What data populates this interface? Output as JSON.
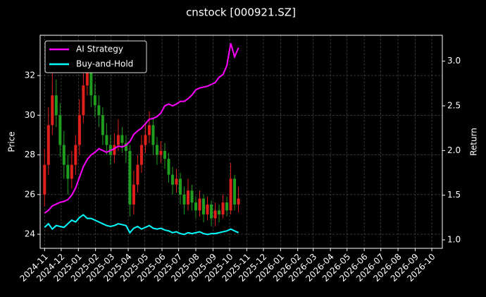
{
  "chart_data": {
    "type": "candlestick",
    "title": "cnstock [000921.SZ]",
    "ylabel": "Price",
    "y2label": "Return",
    "x": [
      "2024-11-01",
      "2024-11-08",
      "2024-11-15",
      "2024-11-22",
      "2024-11-29",
      "2024-12-06",
      "2024-12-13",
      "2024-12-20",
      "2024-12-27",
      "2025-01-03",
      "2025-01-10",
      "2025-01-17",
      "2025-01-24",
      "2025-01-31",
      "2025-02-07",
      "2025-02-14",
      "2025-02-21",
      "2025-02-28",
      "2025-03-07",
      "2025-03-14",
      "2025-03-21",
      "2025-03-28",
      "2025-04-04",
      "2025-04-11",
      "2025-04-18",
      "2025-04-25",
      "2025-05-02",
      "2025-05-09",
      "2025-05-16",
      "2025-05-23",
      "2025-05-30",
      "2025-06-06",
      "2025-06-13",
      "2025-06-20",
      "2025-06-27",
      "2025-07-04",
      "2025-07-11",
      "2025-07-18",
      "2025-07-25",
      "2025-08-01",
      "2025-08-08",
      "2025-08-15",
      "2025-08-22",
      "2025-08-29",
      "2025-09-05",
      "2025-09-12",
      "2025-09-19",
      "2025-09-26",
      "2025-10-03",
      "2025-10-10",
      "2025-10-17"
    ],
    "open": [
      26.0,
      27.5,
      29.5,
      31.0,
      30.0,
      28.5,
      27.5,
      26.8,
      27.5,
      28.5,
      30.0,
      31.5,
      32.5,
      31.0,
      30.5,
      30.0,
      29.0,
      28.5,
      28.0,
      28.5,
      29.0,
      28.6,
      28.2,
      25.5,
      26.5,
      27.5,
      28.5,
      29.0,
      29.5,
      28.5,
      28.0,
      28.2,
      27.8,
      27.0,
      26.5,
      26.8,
      26.0,
      25.5,
      26.2,
      25.6,
      25.2,
      25.8,
      25.0,
      25.5,
      24.8,
      25.2,
      25.0,
      25.6,
      25.2,
      26.8,
      25.5
    ],
    "high": [
      28.3,
      30.4,
      32.2,
      31.8,
      30.6,
      29.2,
      28.0,
      28.2,
      29.0,
      30.8,
      32.3,
      33.2,
      32.9,
      31.6,
      31.0,
      30.4,
      29.6,
      29.0,
      29.1,
      29.8,
      29.4,
      29.0,
      28.5,
      27.2,
      28.0,
      29.0,
      29.6,
      30.2,
      29.9,
      28.9,
      28.7,
      28.6,
      28.1,
      27.4,
      27.3,
      27.1,
      26.4,
      26.8,
      26.5,
      25.9,
      26.2,
      26.0,
      25.9,
      25.7,
      25.6,
      25.5,
      26.0,
      25.9,
      27.6,
      27.0,
      26.4
    ],
    "low": [
      25.4,
      27.0,
      29.0,
      29.4,
      27.9,
      26.8,
      26.0,
      26.3,
      27.0,
      28.0,
      29.6,
      31.0,
      30.4,
      29.9,
      29.4,
      28.5,
      28.0,
      27.5,
      27.6,
      28.2,
      28.1,
      27.6,
      24.9,
      25.0,
      26.1,
      27.1,
      28.1,
      28.6,
      28.0,
      27.5,
      27.6,
      27.3,
      26.6,
      26.0,
      26.1,
      25.5,
      25.0,
      25.2,
      25.2,
      24.8,
      24.9,
      24.6,
      24.7,
      24.4,
      24.4,
      24.6,
      24.8,
      24.9,
      25.0,
      25.2,
      25.1
    ],
    "close": [
      27.5,
      29.5,
      31.0,
      30.0,
      28.5,
      27.5,
      26.8,
      27.5,
      28.5,
      30.0,
      31.5,
      32.5,
      31.0,
      30.5,
      30.0,
      29.0,
      28.5,
      28.0,
      28.5,
      29.0,
      28.6,
      28.2,
      25.5,
      26.5,
      27.5,
      28.5,
      29.0,
      29.5,
      28.5,
      28.0,
      28.2,
      27.8,
      27.0,
      26.5,
      26.8,
      26.0,
      25.5,
      26.2,
      25.6,
      25.2,
      25.8,
      25.0,
      25.5,
      24.8,
      25.2,
      25.0,
      25.6,
      25.2,
      26.8,
      25.5,
      25.8
    ],
    "up_color": "#e0201b",
    "down_color": "#1f9e1f",
    "series": [
      {
        "name": "AI Strategy",
        "color": "#ff00ff",
        "axis": "y2",
        "values": [
          1.3,
          1.33,
          1.38,
          1.4,
          1.42,
          1.43,
          1.45,
          1.5,
          1.58,
          1.7,
          1.82,
          1.9,
          1.95,
          1.98,
          2.02,
          2.0,
          1.98,
          2.0,
          2.02,
          2.05,
          2.04,
          2.06,
          2.1,
          2.18,
          2.22,
          2.25,
          2.3,
          2.35,
          2.36,
          2.38,
          2.42,
          2.5,
          2.52,
          2.5,
          2.52,
          2.55,
          2.55,
          2.58,
          2.62,
          2.68,
          2.7,
          2.71,
          2.72,
          2.74,
          2.76,
          2.82,
          2.85,
          2.95,
          3.2,
          3.05,
          3.15
        ]
      },
      {
        "name": "Buy-and-Hold",
        "color": "#00ffff",
        "axis": "y2",
        "values": [
          1.14,
          1.18,
          1.12,
          1.16,
          1.15,
          1.14,
          1.18,
          1.22,
          1.2,
          1.25,
          1.28,
          1.24,
          1.24,
          1.22,
          1.2,
          1.18,
          1.16,
          1.15,
          1.16,
          1.18,
          1.17,
          1.16,
          1.08,
          1.13,
          1.15,
          1.12,
          1.14,
          1.16,
          1.13,
          1.12,
          1.13,
          1.11,
          1.1,
          1.08,
          1.09,
          1.07,
          1.06,
          1.08,
          1.07,
          1.08,
          1.09,
          1.07,
          1.06,
          1.07,
          1.07,
          1.08,
          1.09,
          1.1,
          1.12,
          1.1,
          1.08
        ]
      }
    ],
    "xlim": [
      "2024-10-24",
      "2026-10-20"
    ],
    "xticks": [
      "2024-11",
      "2024-12",
      "2025-01",
      "2025-02",
      "2025-03",
      "2025-04",
      "2025-05",
      "2025-06",
      "2025-07",
      "2025-08",
      "2025-09",
      "2025-10",
      "2025-11",
      "2025-12",
      "2026-01",
      "2026-02",
      "2026-03",
      "2026-04",
      "2026-05",
      "2026-06",
      "2026-07",
      "2026-08",
      "2026-09",
      "2026-10"
    ],
    "ylim": [
      23.29,
      34.03
    ],
    "yticks": [
      24,
      26,
      28,
      30,
      32
    ],
    "y2lim": [
      0.905,
      3.29
    ],
    "y2ticks": [
      {
        "value": 1,
        "label": "1.0"
      },
      1.5,
      {
        "value": 2,
        "label": "2.0"
      },
      2.5,
      {
        "value": 3,
        "label": "3.0"
      }
    ],
    "grid": true,
    "legend": "upper left"
  }
}
